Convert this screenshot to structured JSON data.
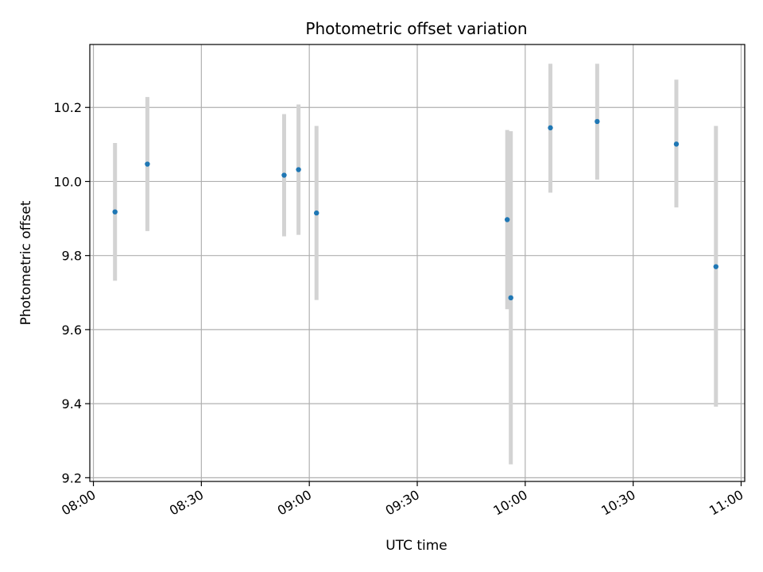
{
  "chart_data": {
    "type": "scatter",
    "title": "Photometric offset variation",
    "xlabel": "UTC time",
    "ylabel": "Photometric offset",
    "xlim": [
      "07:59",
      "11:01"
    ],
    "ylim": [
      9.19,
      10.37
    ],
    "x_ticks": [
      "08:00",
      "08:30",
      "09:00",
      "09:30",
      "10:00",
      "10:30",
      "11:00"
    ],
    "y_ticks": [
      9.2,
      9.4,
      9.6,
      9.8,
      10.0,
      10.2
    ],
    "grid": true,
    "point_color": "#1f77b4",
    "errorbar_color": "#d3d3d3",
    "series": [
      {
        "points": [
          {
            "x": "08:06",
            "y": 9.918,
            "low": 9.732,
            "high": 10.104
          },
          {
            "x": "08:15",
            "y": 10.047,
            "low": 9.866,
            "high": 10.228
          },
          {
            "x": "08:53",
            "y": 10.017,
            "low": 9.852,
            "high": 10.182
          },
          {
            "x": "08:57",
            "y": 10.032,
            "low": 9.856,
            "high": 10.208
          },
          {
            "x": "09:02",
            "y": 9.915,
            "low": 9.68,
            "high": 10.15
          },
          {
            "x": "09:55",
            "y": 9.897,
            "low": 9.655,
            "high": 10.139
          },
          {
            "x": "09:56",
            "y": 9.686,
            "low": 9.236,
            "high": 10.136
          },
          {
            "x": "10:07",
            "y": 10.145,
            "low": 9.97,
            "high": 10.318
          },
          {
            "x": "10:20",
            "y": 10.162,
            "low": 10.005,
            "high": 10.318
          },
          {
            "x": "10:42",
            "y": 10.101,
            "low": 9.93,
            "high": 10.275
          },
          {
            "x": "10:53",
            "y": 9.77,
            "low": 9.392,
            "high": 10.15
          }
        ]
      }
    ]
  }
}
